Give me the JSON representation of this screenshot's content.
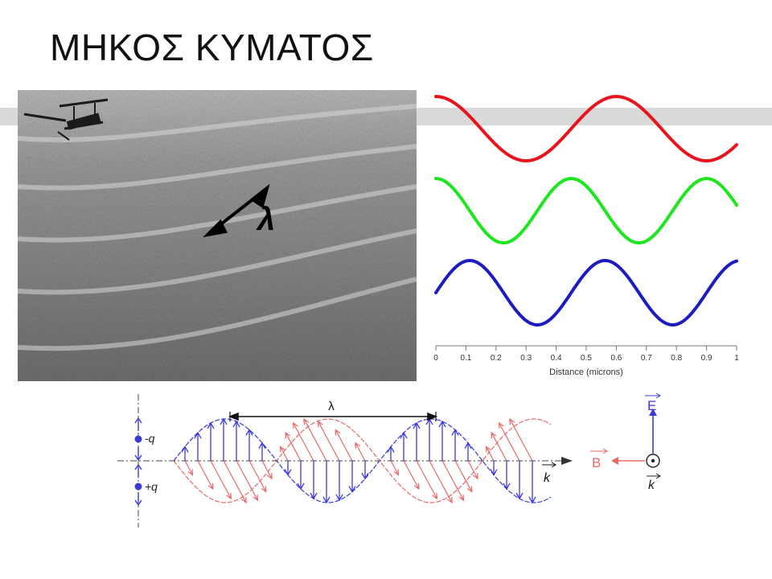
{
  "slide": {
    "title": "ΜΗΚΟΣ ΚΥΜΑΤΟΣ"
  },
  "photo": {
    "lambda_label": "λ"
  },
  "chart_data": {
    "type": "line",
    "xlabel": "Distance (microns)",
    "ylabel": "",
    "xlim": [
      0,
      1
    ],
    "x_ticks": [
      "0",
      "0.1",
      "0.2",
      "0.3",
      "0.4",
      "0.5",
      "0.6",
      "0.7",
      "0.8",
      "0.9",
      "1"
    ],
    "grid": false,
    "series": [
      {
        "color": "#e8141b",
        "wavelength": 0.6,
        "phase_deg": 90
      },
      {
        "color": "#1ee61e",
        "wavelength": 0.45,
        "phase_deg": 90
      },
      {
        "color": "#1c1cc0",
        "wavelength": 0.45,
        "phase_deg": 0
      }
    ]
  },
  "em_diagram": {
    "lambda_label": "λ",
    "charge_minus": "-q",
    "charge_plus": "+q",
    "k_label": "k",
    "e_color": "#3b3bd6",
    "b_color": "#e86868"
  },
  "axes_legend": {
    "e_label": "E",
    "b_label": "B",
    "k_label": "k"
  }
}
